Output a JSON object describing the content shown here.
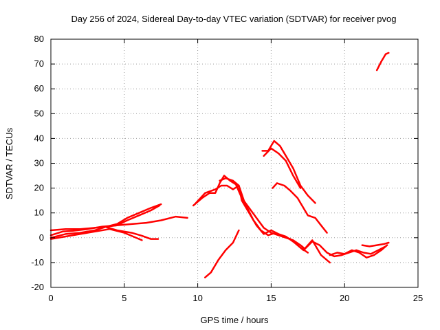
{
  "chart_data": {
    "type": "line",
    "title": "Day 256 of 2024, Sidereal Day-to-day VTEC variation (SDTVAR) for receiver pvog",
    "xlabel": "GPS time / hours",
    "ylabel": "SDTVAR / TECUs",
    "xlim": [
      0,
      25
    ],
    "ylim": [
      -20,
      80
    ],
    "xticks": [
      "0",
      "5",
      "10",
      "15",
      "20",
      "25"
    ],
    "yticks": [
      "-20",
      "-10",
      "0",
      "10",
      "20",
      "30",
      "40",
      "50",
      "60",
      "70",
      "80"
    ],
    "grid": true,
    "color": "#ff0000",
    "series": [
      {
        "name": "track-1",
        "points": [
          [
            0,
            1
          ],
          [
            0.8,
            2.5
          ],
          [
            1.5,
            2.8
          ],
          [
            2.5,
            3.5
          ],
          [
            3.5,
            4.5
          ],
          [
            4.5,
            5
          ],
          [
            5.5,
            5.5
          ],
          [
            6.5,
            6
          ],
          [
            7.5,
            7
          ],
          [
            8.5,
            8.5
          ],
          [
            9.3,
            8
          ]
        ]
      },
      {
        "name": "track-2",
        "points": [
          [
            0,
            3
          ],
          [
            1,
            3.5
          ],
          [
            2,
            3.5
          ],
          [
            3,
            4
          ],
          [
            3.8,
            4.5
          ],
          [
            4.5,
            5
          ],
          [
            5.2,
            7
          ],
          [
            6,
            9
          ],
          [
            6.8,
            11
          ],
          [
            7.4,
            13
          ]
        ]
      },
      {
        "name": "track-3",
        "points": [
          [
            0,
            0
          ],
          [
            1,
            1.5
          ],
          [
            2,
            2
          ],
          [
            3,
            3
          ],
          [
            3.8,
            4.5
          ],
          [
            4.5,
            5.5
          ],
          [
            5.2,
            8
          ],
          [
            6,
            10
          ],
          [
            6.8,
            12
          ],
          [
            7.5,
            13.5
          ]
        ]
      },
      {
        "name": "track-4",
        "points": [
          [
            0,
            -0.5
          ],
          [
            1,
            0.5
          ],
          [
            2,
            1.5
          ],
          [
            3,
            2.5
          ],
          [
            4,
            3.5
          ],
          [
            5,
            2
          ],
          [
            5.6,
            0.5
          ],
          [
            6.2,
            -1
          ]
        ]
      },
      {
        "name": "track-5",
        "points": [
          [
            3.8,
            4.2
          ],
          [
            4.5,
            3
          ],
          [
            5.5,
            2
          ],
          [
            6.2,
            0.8
          ],
          [
            6.8,
            -0.5
          ],
          [
            7.3,
            -0.5
          ]
        ]
      },
      {
        "name": "track-6",
        "points": [
          [
            9.7,
            13
          ],
          [
            10.3,
            16
          ],
          [
            10.8,
            18
          ],
          [
            11.2,
            18
          ],
          [
            11.5,
            22
          ],
          [
            11.8,
            25
          ],
          [
            12.2,
            23
          ],
          [
            12.6,
            21.5
          ],
          [
            13,
            16
          ],
          [
            13.5,
            12
          ],
          [
            14,
            8
          ],
          [
            14.5,
            4
          ],
          [
            15,
            2
          ],
          [
            15.5,
            1
          ],
          [
            16,
            0
          ],
          [
            16.5,
            -1
          ],
          [
            17,
            -3
          ],
          [
            17.3,
            -4.5
          ],
          [
            17.8,
            -1.5
          ],
          [
            18.3,
            -3
          ],
          [
            18.8,
            -6
          ],
          [
            19.3,
            -7.5
          ],
          [
            19.8,
            -7
          ],
          [
            20.3,
            -6
          ],
          [
            20.8,
            -5
          ],
          [
            21.3,
            -6
          ],
          [
            21.8,
            -6.5
          ],
          [
            22.3,
            -5
          ],
          [
            22.8,
            -3.5
          ]
        ]
      },
      {
        "name": "track-7",
        "points": [
          [
            9.8,
            13.5
          ],
          [
            10.5,
            18
          ],
          [
            11.2,
            19.5
          ],
          [
            11.6,
            21
          ],
          [
            12,
            21
          ],
          [
            12.4,
            19.5
          ],
          [
            12.8,
            21
          ],
          [
            13,
            15
          ],
          [
            13.5,
            10
          ],
          [
            14,
            5
          ],
          [
            14.5,
            1.5
          ],
          [
            15,
            3
          ],
          [
            15.5,
            1.5
          ],
          [
            16,
            0.5
          ],
          [
            16.6,
            -2
          ],
          [
            17.2,
            -5
          ],
          [
            17.8,
            -1
          ],
          [
            18.4,
            -7
          ],
          [
            19,
            -10
          ]
        ]
      },
      {
        "name": "track-8",
        "points": [
          [
            11.5,
            23
          ],
          [
            11.9,
            24
          ],
          [
            12.4,
            23
          ],
          [
            12.8,
            21
          ],
          [
            13.2,
            14
          ],
          [
            13.8,
            7
          ],
          [
            14.3,
            3
          ],
          [
            14.8,
            1
          ],
          [
            15.3,
            2
          ],
          [
            15.8,
            0.5
          ],
          [
            16.3,
            -0.5
          ],
          [
            17,
            -4
          ],
          [
            17.5,
            -6
          ]
        ]
      },
      {
        "name": "track-9",
        "points": [
          [
            10.5,
            -16
          ],
          [
            10.9,
            -14
          ],
          [
            11.4,
            -9
          ],
          [
            11.9,
            -5
          ],
          [
            12.4,
            -2
          ],
          [
            12.8,
            3
          ]
        ]
      },
      {
        "name": "track-10",
        "points": [
          [
            14.4,
            35
          ],
          [
            14.8,
            35
          ],
          [
            15.2,
            39
          ],
          [
            15.6,
            37
          ],
          [
            16,
            33
          ],
          [
            16.5,
            28
          ],
          [
            17,
            21
          ],
          [
            17.5,
            17
          ],
          [
            18,
            14
          ]
        ]
      },
      {
        "name": "track-11",
        "points": [
          [
            14.5,
            33
          ],
          [
            15,
            36
          ],
          [
            15.5,
            34
          ],
          [
            16,
            31
          ],
          [
            16.5,
            25
          ],
          [
            17,
            20
          ]
        ]
      },
      {
        "name": "track-12",
        "points": [
          [
            15.1,
            20
          ],
          [
            15.4,
            22
          ],
          [
            15.9,
            21
          ],
          [
            16.3,
            19
          ],
          [
            16.8,
            16
          ],
          [
            17.2,
            12
          ],
          [
            17.5,
            9
          ],
          [
            18,
            8
          ],
          [
            18.4,
            5
          ],
          [
            18.8,
            2
          ]
        ]
      },
      {
        "name": "track-13",
        "points": [
          [
            19,
            -7
          ],
          [
            19.5,
            -6
          ],
          [
            20,
            -6.5
          ],
          [
            20.5,
            -5
          ],
          [
            21,
            -6
          ],
          [
            21.5,
            -8
          ],
          [
            22,
            -7
          ],
          [
            22.5,
            -5
          ],
          [
            22.9,
            -3
          ]
        ]
      },
      {
        "name": "track-14",
        "points": [
          [
            21.2,
            -3
          ],
          [
            21.7,
            -3.5
          ],
          [
            22.2,
            -3
          ],
          [
            22.7,
            -2.5
          ],
          [
            23,
            -2
          ]
        ]
      },
      {
        "name": "track-15",
        "points": [
          [
            22.2,
            67.5
          ],
          [
            22.5,
            71
          ],
          [
            22.8,
            74
          ],
          [
            23,
            74.5
          ]
        ]
      }
    ]
  }
}
